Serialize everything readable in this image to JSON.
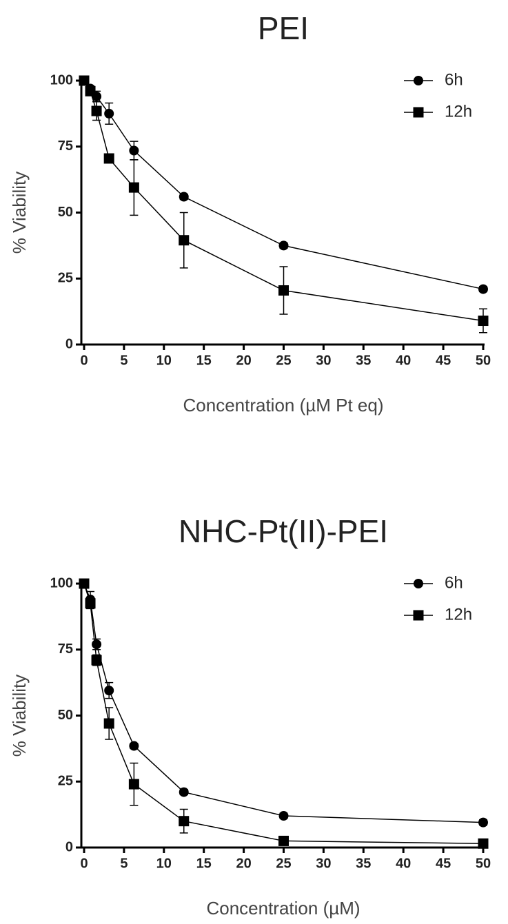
{
  "chart_data": [
    {
      "type": "line",
      "title": "PEI",
      "x_label": "Concentration (µM Pt eq)",
      "y_label": "% Viability",
      "x": [
        0,
        0.78,
        1.56,
        3.125,
        6.25,
        12.5,
        25,
        50
      ],
      "xlim": [
        0,
        50
      ],
      "xticks": [
        0,
        5,
        10,
        15,
        20,
        25,
        30,
        35,
        40,
        45,
        50
      ],
      "ylim": [
        0,
        100
      ],
      "yticks": [
        0,
        25,
        50,
        75,
        100
      ],
      "series": [
        {
          "name": "6h",
          "color": "#000000",
          "marker": "circle",
          "values": [
            100,
            97,
            94,
            87.5,
            73.5,
            56,
            37.5,
            21
          ],
          "errors": [
            0,
            1,
            2,
            4,
            3.5,
            1,
            1,
            1
          ]
        },
        {
          "name": "12h",
          "color": "#000000",
          "marker": "square",
          "values": [
            100,
            96,
            88.5,
            70.5,
            59.5,
            39.5,
            20.5,
            9
          ],
          "errors": [
            0,
            1,
            3.5,
            1,
            10.5,
            10.5,
            9,
            4.5
          ]
        }
      ]
    },
    {
      "type": "line",
      "title": "NHC-Pt(II)-PEI",
      "x_label": "Concentration (µM)",
      "y_label": "% Viability",
      "x": [
        0,
        0.78,
        1.56,
        3.125,
        6.25,
        12.5,
        25,
        50
      ],
      "xlim": [
        0,
        50
      ],
      "xticks": [
        0,
        5,
        10,
        15,
        20,
        25,
        30,
        35,
        40,
        45,
        50
      ],
      "ylim": [
        0,
        100
      ],
      "yticks": [
        0,
        25,
        50,
        75,
        100
      ],
      "series": [
        {
          "name": "6h",
          "color": "#000000",
          "marker": "circle",
          "values": [
            100,
            94,
            77,
            59.5,
            38.5,
            21,
            12,
            9.5
          ],
          "errors": [
            0,
            3,
            2,
            3,
            1,
            1,
            1,
            1
          ]
        },
        {
          "name": "12h",
          "color": "#000000",
          "marker": "square",
          "values": [
            100,
            92.5,
            71,
            47,
            24,
            10,
            2.5,
            1.5
          ],
          "errors": [
            0,
            2,
            2,
            6,
            8,
            4.5,
            1,
            1
          ]
        }
      ]
    }
  ]
}
